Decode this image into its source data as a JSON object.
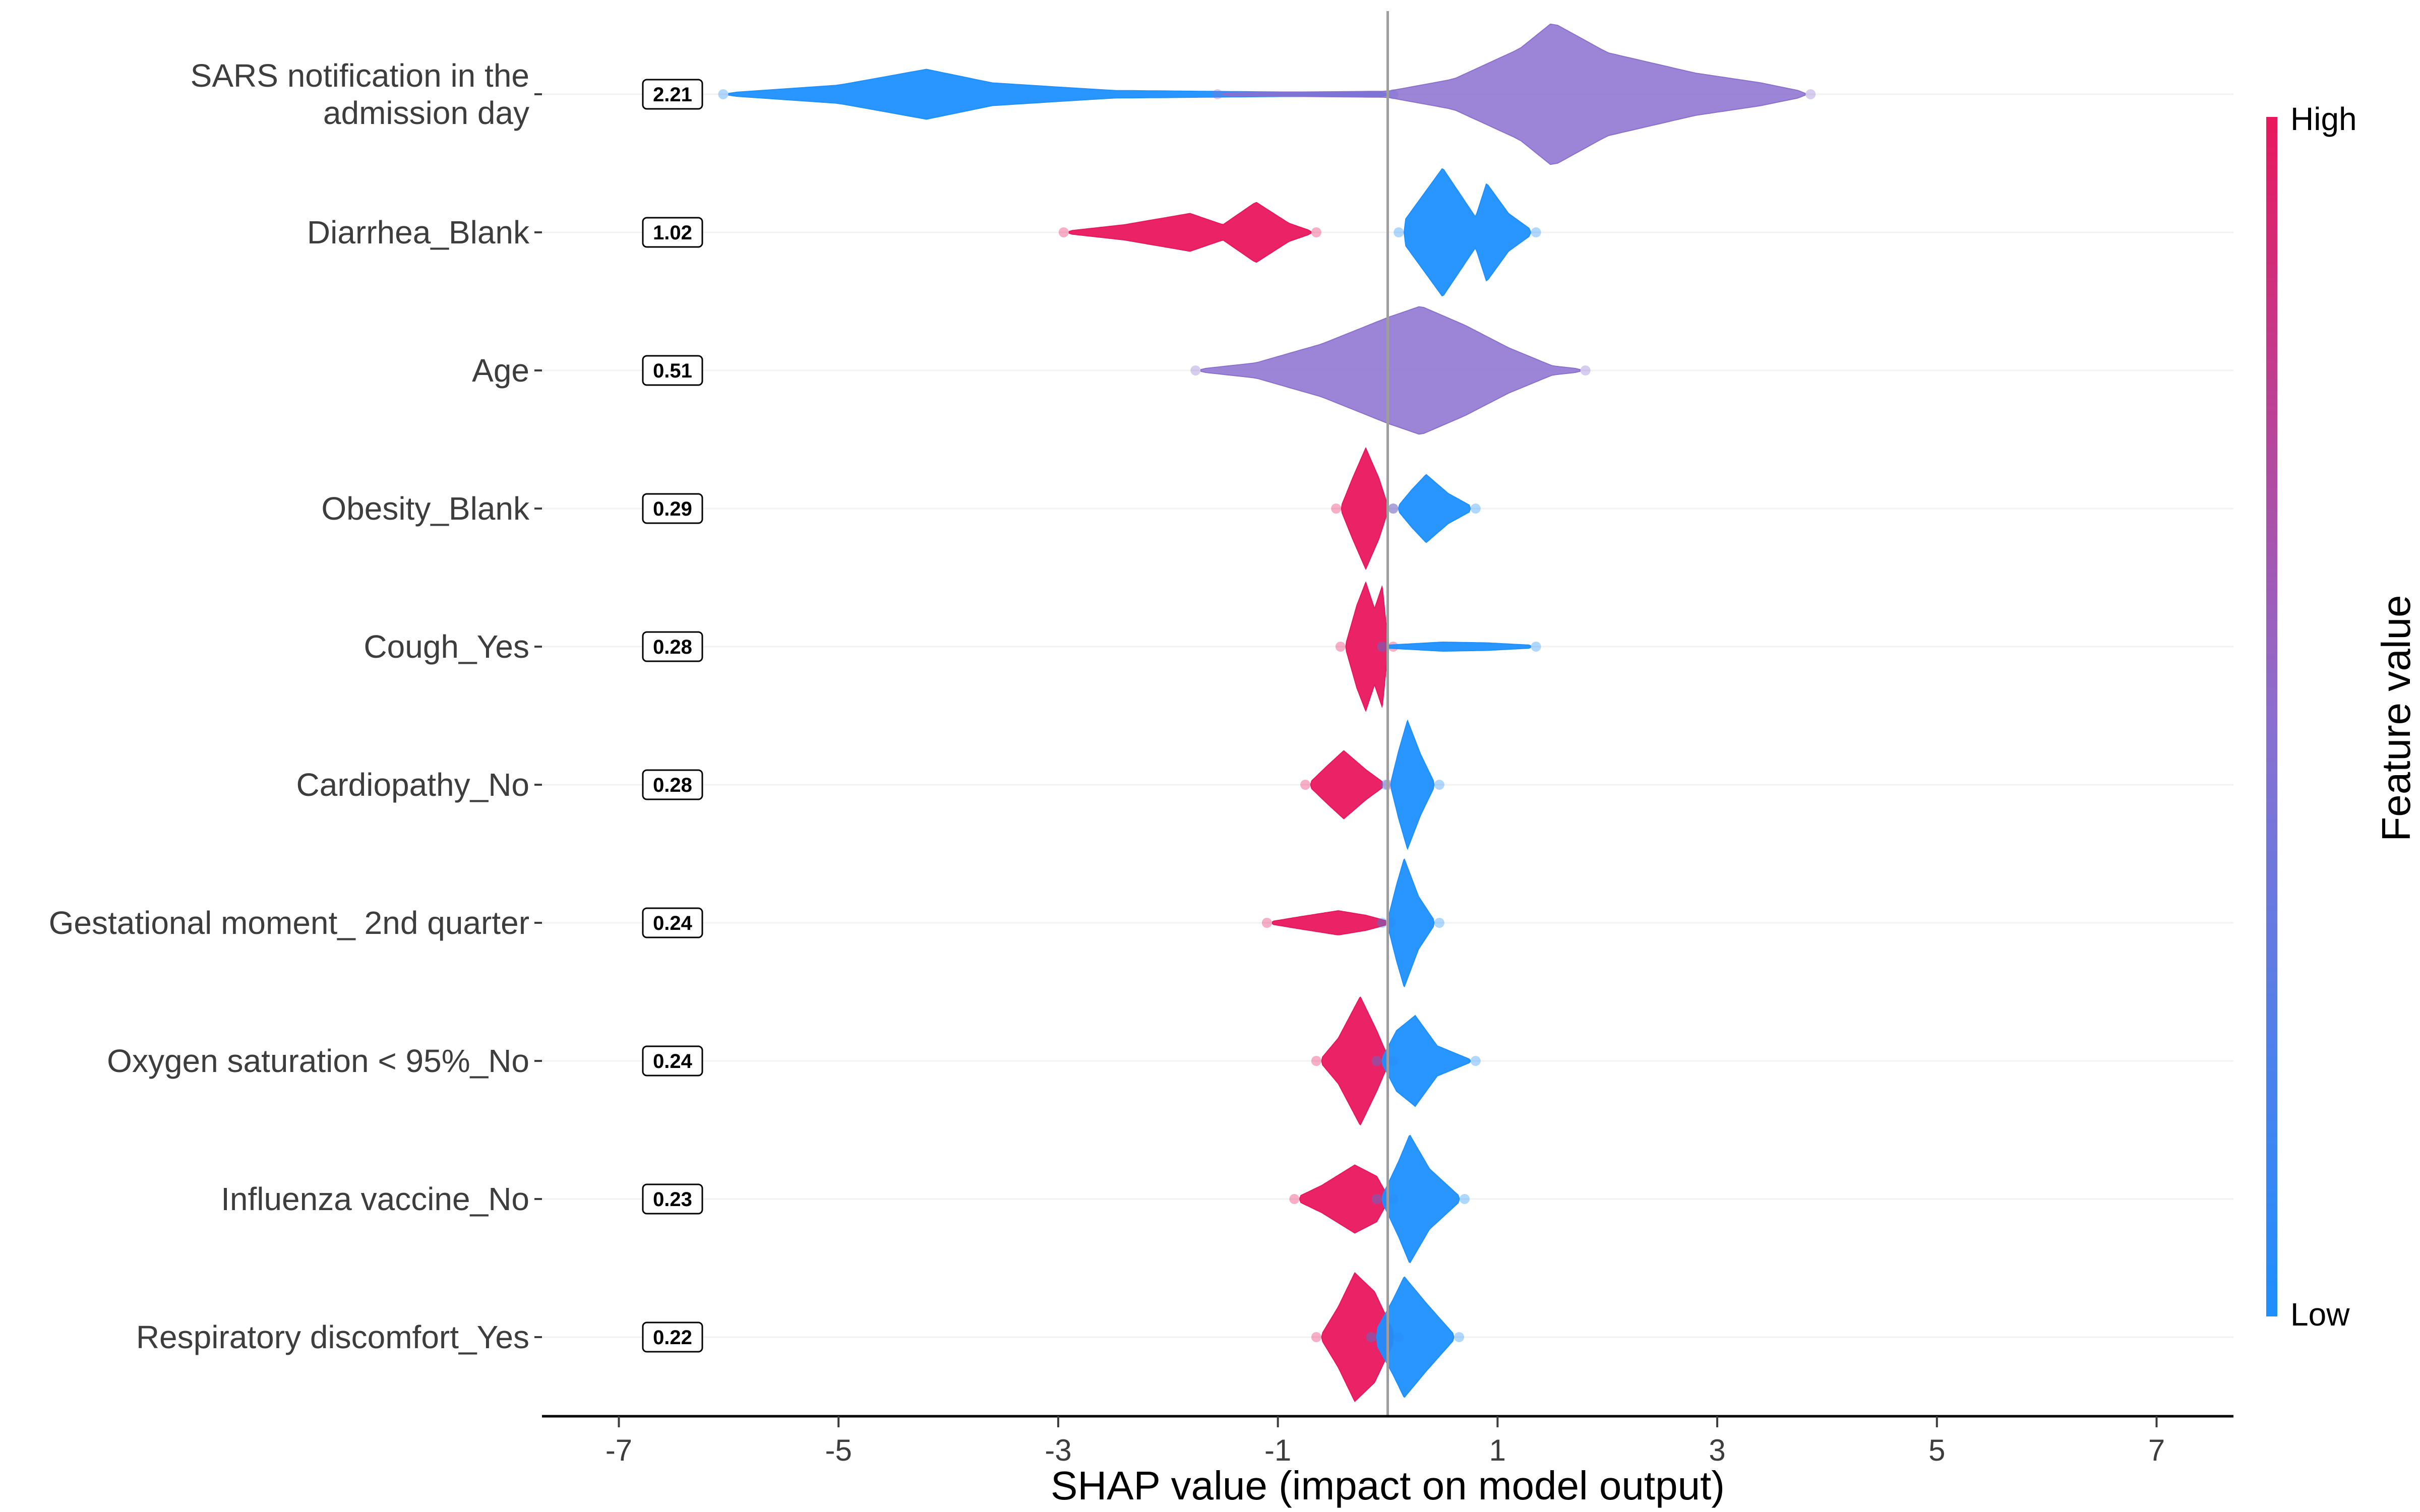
{
  "chart_data": {
    "type": "scatter",
    "subtype": "shap-summary",
    "title": "",
    "xlabel": "SHAP value (impact on model output)",
    "xlim": [
      -7.7,
      7.7
    ],
    "xticks": [
      -7,
      -5,
      -3,
      -1,
      1,
      3,
      5,
      7
    ],
    "grid": false,
    "colors": {
      "high": "#E8175D",
      "low": "#1E8FFF",
      "mid": "#8B6FCF",
      "baseline": "#9e9e9e"
    },
    "colorbar": {
      "title": "Feature value",
      "high_label": "High",
      "low_label": "Low"
    },
    "features": [
      {
        "name": "SARS notification in the admission day",
        "lines": [
          "SARS notification in the",
          "admission day"
        ],
        "importance": "2.21",
        "groups": [
          {
            "color": "low",
            "profile": [
              [
                -6.0,
                0.02
              ],
              [
                -5.0,
                0.12
              ],
              [
                -4.2,
                0.33
              ],
              [
                -3.6,
                0.15
              ],
              [
                -2.5,
                0.05
              ],
              [
                -1.0,
                0.03
              ],
              [
                0.0,
                0.03
              ]
            ]
          },
          {
            "color": "mid",
            "profile": [
              [
                -1.5,
                0.02
              ],
              [
                0.0,
                0.04
              ],
              [
                0.6,
                0.2
              ],
              [
                1.2,
                0.6
              ],
              [
                1.5,
                0.95
              ],
              [
                2.0,
                0.55
              ],
              [
                2.8,
                0.28
              ],
              [
                3.4,
                0.15
              ],
              [
                3.8,
                0.03
              ]
            ]
          }
        ]
      },
      {
        "name": "Diarrhea_Blank",
        "lines": [
          "Diarrhea_Blank"
        ],
        "importance": "1.02",
        "groups": [
          {
            "color": "high",
            "profile": [
              [
                -2.9,
                0.02
              ],
              [
                -2.4,
                0.1
              ],
              [
                -1.8,
                0.25
              ],
              [
                -1.5,
                0.1
              ],
              [
                -1.2,
                0.4
              ],
              [
                -0.9,
                0.12
              ],
              [
                -0.7,
                0.02
              ]
            ]
          },
          {
            "color": "low",
            "profile": [
              [
                0.15,
                0.15
              ],
              [
                0.5,
                0.85
              ],
              [
                0.8,
                0.2
              ],
              [
                0.9,
                0.65
              ],
              [
                1.1,
                0.25
              ],
              [
                1.3,
                0.04
              ]
            ]
          }
        ]
      },
      {
        "name": "Age",
        "lines": [
          "Age"
        ],
        "importance": "0.51",
        "groups": [
          {
            "color": "mid",
            "profile": [
              [
                -1.7,
                0.02
              ],
              [
                -1.2,
                0.1
              ],
              [
                -0.6,
                0.35
              ],
              [
                0.0,
                0.7
              ],
              [
                0.3,
                0.85
              ],
              [
                0.7,
                0.6
              ],
              [
                1.1,
                0.3
              ],
              [
                1.5,
                0.06
              ],
              [
                1.75,
                0.02
              ]
            ]
          }
        ]
      },
      {
        "name": "Obesity_Blank",
        "lines": [
          "Obesity_Blank"
        ],
        "importance": "0.29",
        "groups": [
          {
            "color": "high",
            "profile": [
              [
                -0.42,
                0.04
              ],
              [
                -0.32,
                0.4
              ],
              [
                -0.2,
                0.8
              ],
              [
                -0.08,
                0.4
              ],
              [
                0.0,
                0.04
              ]
            ]
          },
          {
            "color": "low",
            "profile": [
              [
                0.1,
                0.04
              ],
              [
                0.22,
                0.25
              ],
              [
                0.35,
                0.45
              ],
              [
                0.55,
                0.2
              ],
              [
                0.75,
                0.04
              ]
            ]
          }
        ]
      },
      {
        "name": "Cough_Yes",
        "lines": [
          "Cough_Yes"
        ],
        "importance": "0.28",
        "groups": [
          {
            "color": "high",
            "profile": [
              [
                -0.38,
                0.04
              ],
              [
                -0.28,
                0.55
              ],
              [
                -0.2,
                0.85
              ],
              [
                -0.12,
                0.5
              ],
              [
                -0.05,
                0.8
              ],
              [
                0.0,
                0.08
              ]
            ]
          },
          {
            "color": "low",
            "profile": [
              [
                0.0,
                0.02
              ],
              [
                0.5,
                0.06
              ],
              [
                0.9,
                0.05
              ],
              [
                1.3,
                0.02
              ]
            ]
          }
        ]
      },
      {
        "name": "Cardiopathy_No",
        "lines": [
          "Cardiopathy_No"
        ],
        "importance": "0.28",
        "groups": [
          {
            "color": "high",
            "profile": [
              [
                -0.7,
                0.04
              ],
              [
                -0.55,
                0.25
              ],
              [
                -0.4,
                0.45
              ],
              [
                -0.2,
                0.2
              ],
              [
                -0.05,
                0.04
              ]
            ]
          },
          {
            "color": "low",
            "profile": [
              [
                0.03,
                0.04
              ],
              [
                0.1,
                0.45
              ],
              [
                0.18,
                0.85
              ],
              [
                0.3,
                0.4
              ],
              [
                0.42,
                0.04
              ]
            ]
          }
        ]
      },
      {
        "name": "Gestational moment_ 2nd quarter",
        "lines": [
          "Gestational moment_ 2nd quarter"
        ],
        "importance": "0.24",
        "groups": [
          {
            "color": "high",
            "profile": [
              [
                -1.05,
                0.02
              ],
              [
                -0.8,
                0.08
              ],
              [
                -0.45,
                0.16
              ],
              [
                -0.2,
                0.1
              ],
              [
                -0.02,
                0.03
              ]
            ]
          },
          {
            "color": "low",
            "profile": [
              [
                0.0,
                0.04
              ],
              [
                0.08,
                0.5
              ],
              [
                0.15,
                0.85
              ],
              [
                0.28,
                0.35
              ],
              [
                0.42,
                0.04
              ]
            ]
          }
        ]
      },
      {
        "name": "Oxygen saturation < 95%_No",
        "lines": [
          "Oxygen saturation < 95%_No"
        ],
        "importance": "0.24",
        "groups": [
          {
            "color": "high",
            "profile": [
              [
                -0.6,
                0.04
              ],
              [
                -0.45,
                0.3
              ],
              [
                -0.25,
                0.85
              ],
              [
                -0.1,
                0.4
              ],
              [
                0.0,
                0.06
              ]
            ]
          },
          {
            "color": "low",
            "profile": [
              [
                -0.05,
                0.04
              ],
              [
                0.08,
                0.4
              ],
              [
                0.25,
                0.6
              ],
              [
                0.45,
                0.2
              ],
              [
                0.75,
                0.02
              ]
            ]
          }
        ]
      },
      {
        "name": "Influenza vaccine_No",
        "lines": [
          "Influenza vaccine_No"
        ],
        "importance": "0.23",
        "groups": [
          {
            "color": "high",
            "profile": [
              [
                -0.8,
                0.04
              ],
              [
                -0.6,
                0.18
              ],
              [
                -0.3,
                0.45
              ],
              [
                -0.1,
                0.3
              ],
              [
                0.0,
                0.04
              ]
            ]
          },
          {
            "color": "low",
            "profile": [
              [
                -0.05,
                0.04
              ],
              [
                0.1,
                0.5
              ],
              [
                0.2,
                0.85
              ],
              [
                0.38,
                0.4
              ],
              [
                0.65,
                0.04
              ]
            ]
          }
        ]
      },
      {
        "name": "Respiratory discomfort_Yes",
        "lines": [
          "Respiratory discomfort_Yes"
        ],
        "importance": "0.22",
        "groups": [
          {
            "color": "high",
            "profile": [
              [
                -0.6,
                0.04
              ],
              [
                -0.45,
                0.4
              ],
              [
                -0.3,
                0.85
              ],
              [
                -0.12,
                0.6
              ],
              [
                0.05,
                0.08
              ]
            ]
          },
          {
            "color": "low",
            "profile": [
              [
                -0.1,
                0.1
              ],
              [
                0.05,
                0.5
              ],
              [
                0.15,
                0.8
              ],
              [
                0.35,
                0.45
              ],
              [
                0.6,
                0.04
              ]
            ]
          }
        ]
      }
    ]
  }
}
